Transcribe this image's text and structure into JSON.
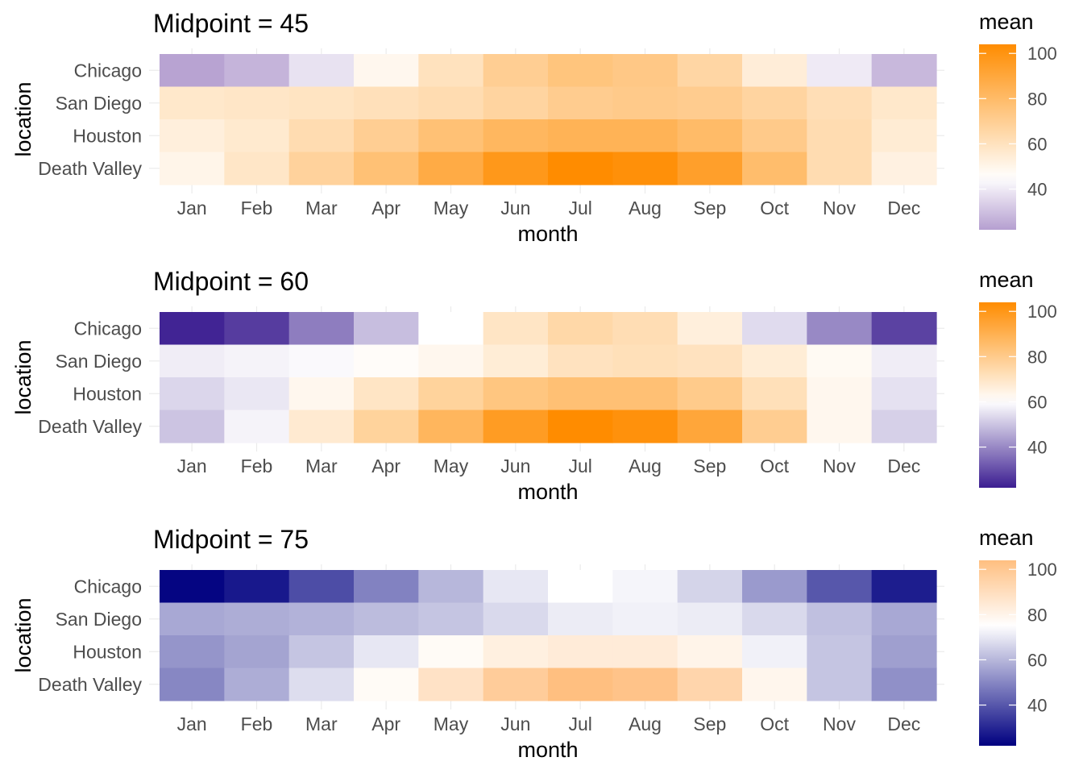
{
  "chart_data": [
    {
      "type": "heatmap",
      "title": "Midpoint = 45",
      "xlabel": "month",
      "ylabel": "location",
      "x": [
        "Jan",
        "Feb",
        "Mar",
        "Apr",
        "May",
        "Jun",
        "Jul",
        "Aug",
        "Sep",
        "Oct",
        "Nov",
        "Dec"
      ],
      "y": [
        "Chicago",
        "San Diego",
        "Houston",
        "Death Valley"
      ],
      "values": [
        [
          23,
          27,
          38,
          49,
          60,
          70,
          75,
          73,
          66,
          54,
          40,
          28
        ],
        [
          57,
          58,
          59,
          61,
          63,
          67,
          71,
          72,
          71,
          67,
          62,
          57
        ],
        [
          53,
          56,
          63,
          70,
          77,
          82,
          84,
          84,
          80,
          72,
          63,
          55
        ],
        [
          50,
          58,
          68,
          77,
          88,
          98,
          104,
          102,
          94,
          79,
          63,
          52
        ]
      ],
      "legend": {
        "title": "mean",
        "ticks": [
          40,
          60,
          80,
          100
        ],
        "range": [
          22,
          104
        ],
        "position": "right"
      },
      "colors": {
        "low": "#b59fd0",
        "mid": "#ffffff",
        "high": "#ff8c00"
      },
      "midpoint": 45
    },
    {
      "type": "heatmap",
      "title": "Midpoint = 60",
      "xlabel": "month",
      "ylabel": "location",
      "x": [
        "Jan",
        "Feb",
        "Mar",
        "Apr",
        "May",
        "Jun",
        "Jul",
        "Aug",
        "Sep",
        "Oct",
        "Nov",
        "Dec"
      ],
      "y": [
        "Chicago",
        "San Diego",
        "Houston",
        "Death Valley"
      ],
      "values": [
        [
          23,
          27,
          38,
          49,
          60,
          70,
          75,
          73,
          66,
          54,
          40,
          28
        ],
        [
          57,
          58,
          59,
          61,
          63,
          67,
          71,
          72,
          71,
          67,
          62,
          57
        ],
        [
          53,
          56,
          63,
          70,
          77,
          82,
          84,
          84,
          80,
          72,
          63,
          55
        ],
        [
          50,
          58,
          68,
          77,
          88,
          98,
          104,
          102,
          94,
          79,
          63,
          52
        ]
      ],
      "legend": {
        "title": "mean",
        "ticks": [
          40,
          60,
          80,
          100
        ],
        "range": [
          22,
          104
        ],
        "position": "right"
      },
      "colors": {
        "low": "#3c1e91",
        "mid": "#ffffff",
        "high": "#ff8c00"
      },
      "midpoint": 60
    },
    {
      "type": "heatmap",
      "title": "Midpoint = 75",
      "xlabel": "month",
      "ylabel": "location",
      "x": [
        "Jan",
        "Feb",
        "Mar",
        "Apr",
        "May",
        "Jun",
        "Jul",
        "Aug",
        "Sep",
        "Oct",
        "Nov",
        "Dec"
      ],
      "y": [
        "Chicago",
        "San Diego",
        "Houston",
        "Death Valley"
      ],
      "values": [
        [
          23,
          27,
          38,
          49,
          60,
          70,
          75,
          73,
          66,
          54,
          40,
          28
        ],
        [
          57,
          58,
          59,
          61,
          63,
          67,
          71,
          72,
          71,
          67,
          62,
          57
        ],
        [
          53,
          56,
          63,
          70,
          77,
          82,
          84,
          84,
          80,
          72,
          63,
          55
        ],
        [
          50,
          58,
          68,
          77,
          88,
          98,
          104,
          102,
          94,
          79,
          63,
          52
        ]
      ],
      "legend": {
        "title": "mean",
        "ticks": [
          40,
          60,
          80,
          100
        ],
        "range": [
          22,
          104
        ],
        "position": "right"
      },
      "colors": {
        "low": "#000080",
        "mid": "#ffffff",
        "high": "#ffbf80"
      },
      "midpoint": 75
    }
  ]
}
